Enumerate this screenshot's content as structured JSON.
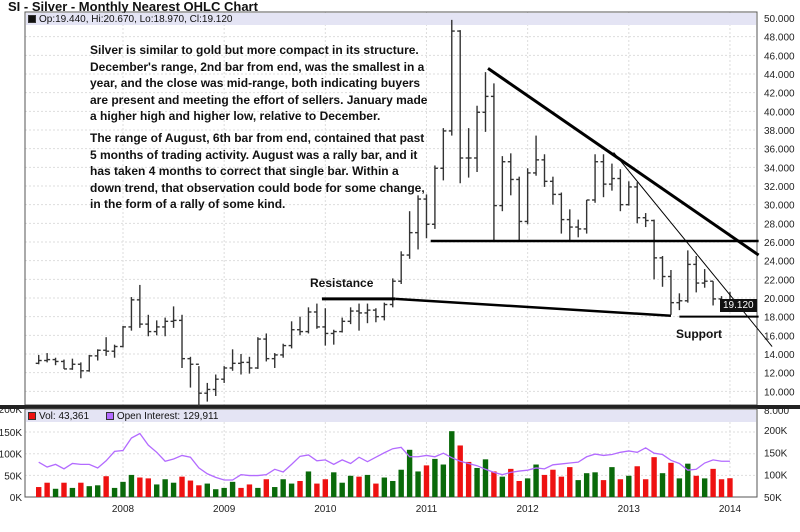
{
  "title": "SI - Silver - Monthly Nearest OHLC Chart",
  "price_legend": "Op:19.440, Hi:20.670, Lo:18.970, Cl:19.120",
  "last_price": "19.120",
  "volume_legend": {
    "vol": "Vol: 43,361",
    "oi": "Open Interest: 129,911"
  },
  "annotations": {
    "note1": [
      "Silver is similar to gold but more compact in its structure.",
      "December's range, 2nd bar from end, was the smallest in a",
      "year, and the close was mid-range, both indicating buyers",
      "are present and meeting the effort of sellers.  January made",
      "a higher high and higher low, relative to December."
    ],
    "note2": [
      "The range of August, 6th bar from end, contained that past",
      "5 months of trading activity.  August was a rally bar, and it",
      "has taken 4 months to correct that single bar.  Within a",
      "down trend, that observation could bode for some change,",
      "in the form of a rally of some kind."
    ],
    "resistance": "Resistance",
    "support": "Support"
  },
  "colors": {
    "bars": "#333333",
    "vol_up": "#0a6a0a",
    "vol_down": "#ee1111",
    "open_interest": "#b36bff",
    "legend_bg": "#e4e4f4",
    "trendline": "#000000"
  },
  "chart_data": [
    {
      "type": "ohlc",
      "title": "SI - Silver - Monthly Nearest OHLC Chart",
      "x_start": "2007-03",
      "x_end": "2014-01",
      "interval": "month",
      "x_ticks": [
        "2008",
        "2009",
        "2010",
        "2011",
        "2012",
        "2013",
        "2014"
      ],
      "ylim": [
        8,
        50
      ],
      "y_ticks": [
        "50.000",
        "48.000",
        "46.000",
        "44.000",
        "42.000",
        "40.000",
        "38.000",
        "36.000",
        "34.000",
        "32.000",
        "30.000",
        "28.000",
        "26.000",
        "24.000",
        "22.000",
        "20.000",
        "18.000",
        "16.000",
        "14.000",
        "12.000",
        "10.000",
        "8.000"
      ],
      "grid": true,
      "open": [
        13.0,
        13.3,
        13.4,
        13.2,
        12.4,
        12.9,
        12.2,
        13.8,
        14.4,
        14.3,
        14.8,
        16.9,
        19.8,
        17.2,
        16.4,
        16.9,
        17.5,
        17.6,
        13.5,
        12.9,
        9.8,
        10.2,
        11.3,
        12.5,
        13.0,
        13.1,
        12.5,
        15.6,
        13.5,
        13.9,
        14.9,
        16.6,
        16.4,
        18.5,
        16.9,
        16.2,
        16.4,
        17.5,
        18.6,
        18.4,
        18.7,
        18.0,
        19.3,
        21.8,
        24.6,
        27.0,
        30.6,
        27.9,
        33.9,
        37.9,
        48.6,
        35.0,
        35.0,
        39.9,
        41.6,
        29.9,
        34.6,
        32.7,
        28.2,
        33.4,
        34.8,
        32.5,
        31.1,
        28.4,
        27.6,
        27.4,
        30.5,
        34.6,
        32.2,
        32.8,
        30.0,
        31.9,
        28.6,
        28.3,
        24.3,
        22.3,
        19.5,
        19.7,
        23.6,
        21.6,
        21.8,
        19.9,
        19.44
      ],
      "high": [
        13.9,
        14.1,
        13.6,
        13.4,
        13.5,
        13.1,
        13.9,
        14.5,
        15.8,
        15.0,
        17.0,
        20.1,
        21.4,
        18.2,
        17.6,
        17.9,
        19.1,
        18.2,
        13.7,
        12.7,
        10.9,
        11.8,
        12.7,
        14.5,
        14.0,
        13.7,
        15.8,
        16.2,
        14.1,
        15.1,
        17.5,
        18.0,
        19.0,
        19.4,
        18.9,
        16.6,
        17.9,
        19.0,
        19.4,
        19.4,
        18.9,
        19.5,
        22.1,
        25.0,
        29.3,
        31.0,
        31.1,
        34.2,
        38.2,
        49.8,
        48.7,
        38.2,
        40.6,
        44.2,
        43.0,
        35.2,
        35.5,
        33.0,
        33.9,
        37.4,
        35.4,
        33.0,
        31.3,
        29.5,
        28.4,
        30.5,
        35.4,
        35.4,
        34.4,
        33.8,
        32.5,
        32.4,
        29.1,
        28.4,
        24.5,
        23.0,
        20.5,
        25.1,
        24.5,
        23.1,
        21.8,
        20.2,
        20.67
      ],
      "low": [
        12.9,
        13.1,
        12.8,
        12.4,
        12.3,
        11.4,
        12.1,
        13.3,
        13.8,
        13.6,
        14.7,
        16.5,
        16.8,
        15.9,
        16.0,
        15.9,
        16.8,
        12.5,
        10.4,
        8.4,
        8.9,
        9.5,
        10.9,
        12.2,
        11.8,
        11.9,
        12.4,
        13.2,
        12.5,
        13.6,
        14.6,
        16.0,
        16.2,
        16.7,
        14.9,
        15.0,
        16.3,
        17.2,
        16.5,
        17.3,
        17.4,
        17.6,
        19.0,
        21.5,
        24.2,
        25.2,
        26.4,
        27.4,
        32.6,
        37.4,
        32.3,
        32.9,
        33.5,
        37.8,
        26.1,
        29.3,
        31.0,
        26.2,
        27.9,
        33.1,
        31.9,
        30.0,
        26.9,
        26.1,
        26.5,
        26.9,
        30.2,
        30.8,
        31.5,
        29.3,
        29.9,
        28.0,
        27.6,
        22.0,
        21.2,
        18.2,
        18.7,
        19.5,
        20.6,
        21.1,
        19.2,
        18.8,
        18.97
      ],
      "close": [
        13.3,
        13.4,
        13.2,
        12.4,
        12.9,
        12.2,
        13.8,
        14.4,
        14.3,
        14.8,
        16.9,
        19.8,
        17.2,
        16.4,
        16.9,
        17.5,
        17.6,
        13.5,
        12.9,
        9.8,
        10.2,
        11.3,
        12.5,
        13.0,
        13.1,
        12.5,
        15.6,
        13.5,
        13.9,
        14.9,
        16.6,
        16.4,
        18.5,
        16.9,
        16.2,
        16.4,
        17.5,
        18.6,
        18.4,
        18.7,
        18.0,
        19.3,
        21.8,
        24.6,
        27.0,
        30.6,
        27.9,
        33.9,
        37.9,
        48.6,
        35.0,
        35.0,
        39.9,
        41.6,
        29.9,
        34.6,
        32.7,
        28.2,
        33.4,
        34.8,
        32.5,
        31.1,
        28.4,
        27.6,
        27.4,
        30.5,
        34.6,
        32.2,
        32.8,
        30.0,
        31.9,
        28.6,
        28.3,
        24.3,
        22.3,
        19.5,
        19.7,
        23.6,
        21.6,
        21.8,
        19.9,
        19.5,
        19.12
      ]
    },
    {
      "type": "bar+line",
      "x_start": "2007-03",
      "x_end": "2014-01",
      "interval": "month",
      "x_ticks": [
        "2008",
        "2009",
        "2010",
        "2011",
        "2012",
        "2013",
        "2014"
      ],
      "y_left_ticks": [
        "200K",
        "150K",
        "100K",
        "50K",
        "0K"
      ],
      "y_right_ticks": [
        "200K",
        "150K",
        "100K",
        "50K"
      ],
      "ylim_left": [
        0,
        200000
      ],
      "ylim_right": [
        50000,
        200000
      ],
      "series": [
        {
          "name": "Vol",
          "axis": "left",
          "type": "bar",
          "values": [
            23000,
            33000,
            19000,
            33000,
            21000,
            33000,
            25000,
            27000,
            48000,
            21000,
            35000,
            51000,
            45000,
            43000,
            29000,
            41000,
            33000,
            47000,
            38000,
            27000,
            31000,
            18000,
            21000,
            35000,
            21000,
            29000,
            21000,
            41000,
            23000,
            41000,
            31000,
            37000,
            59000,
            31000,
            41000,
            57000,
            33000,
            49000,
            47000,
            51000,
            31000,
            45000,
            37000,
            63000,
            109000,
            59000,
            73000,
            88000,
            75000,
            152000,
            119000,
            81000,
            67000,
            87000,
            59000,
            47000,
            65000,
            37000,
            43000,
            75000,
            51000,
            63000,
            47000,
            69000,
            39000,
            55000,
            57000,
            39000,
            69000,
            41000,
            49000,
            71000,
            41000,
            92000,
            55000,
            79000,
            43000,
            77000,
            49000,
            43000,
            65000,
            41000,
            43361
          ],
          "colors": [
            "r",
            "r",
            "g",
            "r",
            "g",
            "r",
            "g",
            "g",
            "r",
            "g",
            "g",
            "g",
            "r",
            "r",
            "g",
            "g",
            "g",
            "r",
            "r",
            "r",
            "g",
            "g",
            "g",
            "g",
            "r",
            "r",
            "g",
            "r",
            "g",
            "g",
            "g",
            "r",
            "g",
            "r",
            "r",
            "g",
            "g",
            "g",
            "r",
            "g",
            "r",
            "g",
            "g",
            "g",
            "g",
            "g",
            "r",
            "g",
            "g",
            "g",
            "r",
            "r",
            "g",
            "g",
            "r",
            "g",
            "r",
            "r",
            "g",
            "g",
            "r",
            "r",
            "r",
            "r",
            "g",
            "g",
            "g",
            "r",
            "g",
            "r",
            "g",
            "r",
            "r",
            "r",
            "g",
            "r",
            "g",
            "g",
            "r",
            "g",
            "r",
            "r",
            "r"
          ]
        },
        {
          "name": "Open Interest",
          "axis": "right",
          "type": "line",
          "values": [
            128000,
            117000,
            123000,
            113000,
            125000,
            123000,
            123000,
            115000,
            131000,
            152000,
            154000,
            182000,
            192000,
            166000,
            150000,
            130000,
            135000,
            143000,
            139000,
            115000,
            102000,
            94000,
            88000,
            88000,
            100000,
            98000,
            98000,
            100000,
            112000,
            106000,
            123000,
            141000,
            144000,
            131000,
            133000,
            123000,
            133000,
            125000,
            139000,
            129000,
            139000,
            149000,
            158000,
            161000,
            140000,
            140000,
            143000,
            140000,
            148000,
            138000,
            130000,
            125000,
            120000,
            112000,
            105000,
            100000,
            105000,
            108000,
            110000,
            115000,
            113000,
            122000,
            124000,
            126000,
            128000,
            140000,
            146000,
            143000,
            145000,
            150000,
            153000,
            150000,
            160000,
            148000,
            145000,
            132000,
            125000,
            110000,
            112000,
            126000,
            133000,
            130000,
            129911
          ]
        }
      ]
    }
  ]
}
